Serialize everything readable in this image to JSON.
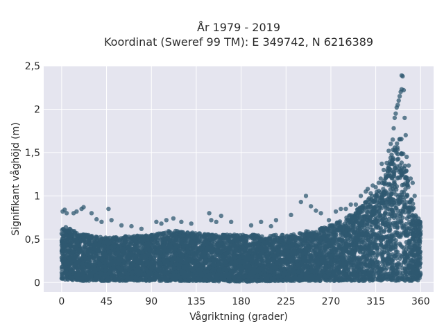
{
  "chart_data": {
    "type": "scatter",
    "title": "År 1979 - 2019",
    "subtitle": "Koordinat (Sweref 99 TM): E 349742, N 6216389",
    "xlabel": "Vågriktning (grader)",
    "ylabel": "Signifikant våghöjd (m)",
    "xlim": [
      -18,
      373
    ],
    "ylim": [
      -0.11,
      2.5
    ],
    "xticks": [
      0,
      45,
      90,
      135,
      180,
      225,
      270,
      315,
      360
    ],
    "xtick_labels": [
      "0",
      "45",
      "90",
      "135",
      "180",
      "225",
      "270",
      "315",
      "360"
    ],
    "yticks": [
      0,
      0.5,
      1,
      1.5,
      2,
      2.5
    ],
    "ytick_labels": [
      "0",
      "0,5",
      "1",
      "1,5",
      "2",
      "2,5"
    ],
    "grid": true,
    "colors": {
      "marker": "#2f5870",
      "plot_bg": "#e5e5ef",
      "grid": "#ffffff"
    },
    "envelope": {
      "direction": [
        0,
        5,
        20,
        45,
        90,
        110,
        135,
        180,
        225,
        250,
        270,
        285,
        300,
        315,
        325,
        330,
        335,
        340,
        345,
        350,
        355,
        360
      ],
      "upper_height": [
        0.62,
        0.65,
        0.56,
        0.52,
        0.55,
        0.6,
        0.57,
        0.55,
        0.55,
        0.6,
        0.66,
        0.75,
        0.88,
        1.05,
        1.25,
        1.45,
        1.65,
        1.72,
        1.35,
        1.0,
        0.8,
        0.7
      ],
      "lower_height": [
        0.04,
        0.03,
        0.02,
        0.02,
        0.02,
        0.02,
        0.02,
        0.01,
        0.02,
        0.02,
        0.02,
        0.02,
        0.02,
        0.02,
        0.02,
        0.02,
        0.02,
        0.02,
        0.02,
        0.02,
        0.02,
        0.03
      ]
    },
    "series": [
      {
        "values": [
          [
            1,
            0.82
          ],
          [
            3,
            0.84
          ],
          [
            5,
            0.8
          ],
          [
            12,
            0.8
          ],
          [
            15,
            0.82
          ],
          [
            20,
            0.85
          ],
          [
            22,
            0.87
          ],
          [
            30,
            0.8
          ],
          [
            35,
            0.73
          ],
          [
            40,
            0.7
          ],
          [
            47,
            0.85
          ],
          [
            50,
            0.72
          ],
          [
            60,
            0.66
          ],
          [
            70,
            0.65
          ],
          [
            80,
            0.62
          ],
          [
            95,
            0.7
          ],
          [
            100,
            0.68
          ],
          [
            105,
            0.72
          ],
          [
            112,
            0.74
          ],
          [
            120,
            0.7
          ],
          [
            130,
            0.68
          ],
          [
            150,
            0.72
          ],
          [
            148,
            0.8
          ],
          [
            155,
            0.7
          ],
          [
            160,
            0.77
          ],
          [
            170,
            0.7
          ],
          [
            190,
            0.66
          ],
          [
            200,
            0.7
          ],
          [
            210,
            0.65
          ],
          [
            215,
            0.72
          ],
          [
            230,
            0.78
          ],
          [
            240,
            0.93
          ],
          [
            245,
            1.0
          ],
          [
            250,
            0.88
          ],
          [
            255,
            0.83
          ],
          [
            260,
            0.8
          ],
          [
            268,
            0.72
          ],
          [
            275,
            0.82
          ],
          [
            280,
            0.85
          ],
          [
            285,
            0.85
          ],
          [
            290,
            0.9
          ],
          [
            295,
            0.9
          ],
          [
            300,
            1.0
          ],
          [
            305,
            1.05
          ],
          [
            307,
            1.08
          ],
          [
            310,
            1.03
          ],
          [
            312,
            1.12
          ],
          [
            315,
            1.1
          ],
          [
            318,
            1.15
          ],
          [
            320,
            1.2
          ],
          [
            321,
            1.37
          ],
          [
            323,
            1.3
          ],
          [
            326,
            1.38
          ],
          [
            328,
            1.52
          ],
          [
            330,
            1.6
          ],
          [
            332,
            1.65
          ],
          [
            333,
            1.78
          ],
          [
            334,
            1.9
          ],
          [
            335,
            1.95
          ],
          [
            336,
            2.02
          ],
          [
            337,
            2.05
          ],
          [
            338,
            2.1
          ],
          [
            339,
            2.15
          ],
          [
            340,
            2.2
          ],
          [
            341,
            2.23
          ],
          [
            342,
            2.38
          ],
          [
            341,
            2.39
          ],
          [
            343,
            2.22
          ],
          [
            344,
            1.9
          ],
          [
            345,
            1.7
          ],
          [
            346,
            1.45
          ],
          [
            348,
            1.35
          ],
          [
            350,
            1.2
          ],
          [
            352,
            1.15
          ],
          [
            354,
            1.0
          ]
        ]
      }
    ]
  }
}
